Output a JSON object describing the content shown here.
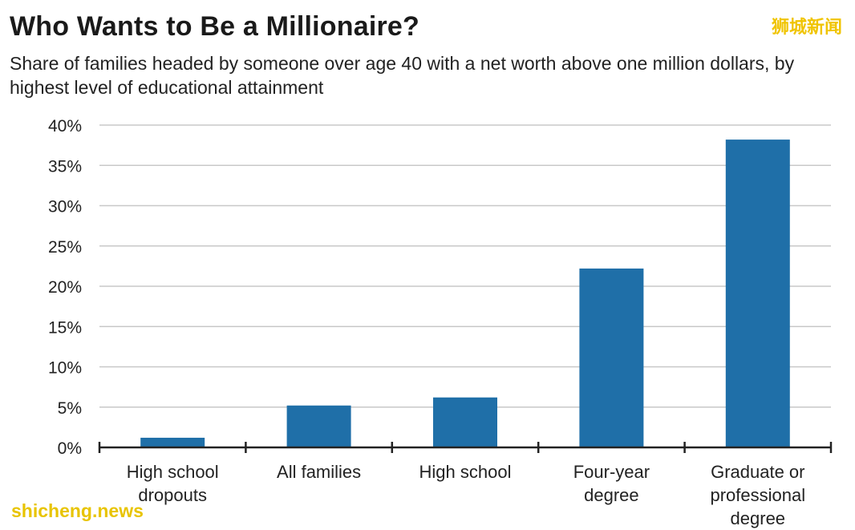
{
  "title": "Who Wants to Be a Millionaire?",
  "subtitle": "Share of families headed by someone over age 40 with a net worth above one million dollars, by highest level of educational attainment",
  "watermark_top": "狮城新闻",
  "watermark_bottom": "shicheng.news",
  "colors": {
    "bar": "#1f6fa8",
    "grid": "#c8c8c8",
    "axis": "#222222"
  },
  "chart_data": {
    "type": "bar",
    "categories": [
      [
        "High school",
        "dropouts"
      ],
      [
        "All families"
      ],
      [
        "High school"
      ],
      [
        "Four-year",
        "degree"
      ],
      [
        "Graduate or",
        "professional",
        "degree"
      ]
    ],
    "values": [
      1.2,
      5.2,
      6.2,
      22.2,
      38.2
    ],
    "ylim": [
      0,
      40
    ],
    "yticks": [
      0,
      5,
      10,
      15,
      20,
      25,
      30,
      35,
      40
    ],
    "ytick_suffix": "%",
    "grid": true,
    "xlabel": "",
    "ylabel": ""
  }
}
